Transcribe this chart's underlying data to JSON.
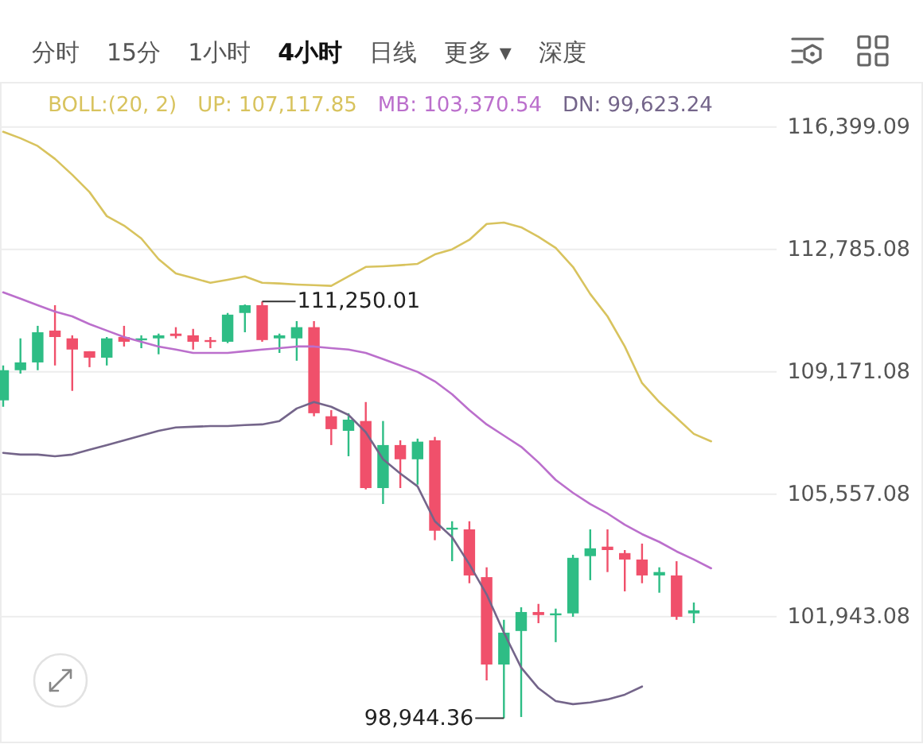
{
  "chart_data": {
    "type": "candlestick",
    "legend_title": "BOLL:(20, 2)",
    "legend": "top",
    "grid": "y",
    "tick_labels": "y",
    "annotations": [
      "分时",
      "15分",
      "1小时",
      "**4小时**",
      "日线",
      "更多 ▾",
      "深度"
    ],
    "categories": [
      null,
      null,
      null,
      null,
      null,
      null,
      null,
      null,
      null,
      null,
      null,
      null,
      null,
      null,
      null,
      null,
      null,
      null,
      null,
      null,
      null,
      null,
      null,
      null,
      null,
      null,
      null,
      null,
      null,
      null,
      null,
      null,
      null,
      null,
      null,
      null,
      null,
      null,
      null,
      null,
      null,
      null
    ],
    "ylim": [
      98230,
      117710
    ],
    "yticks": [
      {
        "value": 116399.09,
        "label": "116,399.09"
      },
      {
        "value": 112785.08,
        "label": "112,785.08"
      },
      {
        "value": 109171.08,
        "label": "109,171.08"
      },
      {
        "value": 105557.08,
        "label": "105,557.08"
      },
      {
        "value": 101943.08,
        "label": "101,943.08"
      }
    ],
    "series": [
      {
        "type": "line",
        "name": "UP: 107,117.85",
        "color": "#d8c35e",
        "values": [
          116260,
          116070,
          115840,
          115460,
          114990,
          114480,
          113770,
          113490,
          113110,
          112500,
          112080,
          111940,
          111800,
          111890,
          111990,
          111800,
          111780,
          111750,
          111730,
          111710,
          111990,
          112270,
          112290,
          112320,
          112360,
          112640,
          112790,
          113070,
          113540,
          113580,
          113440,
          113160,
          112830,
          112270,
          111470,
          110810,
          109920,
          108840,
          108280,
          107810,
          107340,
          107120
        ]
      },
      {
        "type": "line",
        "name": "MB: 103,370.54",
        "color": "#bb6fcc",
        "values": [
          111520,
          111330,
          111140,
          110950,
          110810,
          110580,
          110390,
          110200,
          110060,
          109920,
          109830,
          109730,
          109730,
          109730,
          109780,
          109830,
          109870,
          109920,
          109920,
          109870,
          109830,
          109730,
          109550,
          109360,
          109170,
          108890,
          108510,
          108040,
          107620,
          107290,
          106960,
          106500,
          105980,
          105600,
          105270,
          104990,
          104660,
          104380,
          104150,
          103870,
          103630,
          103370
        ]
      },
      {
        "type": "line",
        "name": "DN: 99,623.24",
        "color": "#74658a",
        "values": [
          106780,
          106730,
          106730,
          106680,
          106730,
          106870,
          107010,
          107150,
          107290,
          107430,
          107530,
          107550,
          107570,
          107570,
          107600,
          107620,
          107720,
          108090,
          108280,
          108140,
          107900,
          107390,
          106590,
          106170,
          105790,
          104760,
          104290,
          103490,
          102600,
          101470,
          100440,
          99830,
          99450,
          99360,
          99410,
          99500,
          99640,
          99880,
          null,
          null,
          null,
          null
        ]
      },
      {
        "ohlc": [
          [
            108330,
            109360,
            108140,
            109220
          ],
          [
            109220,
            110160,
            109120,
            109450
          ],
          [
            109450,
            110530,
            109220,
            110340
          ],
          [
            110390,
            111140,
            109360,
            110200
          ],
          [
            110160,
            110250,
            108610,
            109830
          ],
          [
            109780,
            109780,
            109310,
            109590
          ],
          [
            109590,
            110200,
            109360,
            110160
          ],
          [
            110200,
            110530,
            109920,
            110060
          ],
          [
            110130,
            110250,
            109870,
            110160
          ],
          [
            110160,
            110300,
            109690,
            110250
          ],
          [
            110300,
            110490,
            110160,
            110230
          ],
          [
            110250,
            110440,
            109830,
            110060
          ],
          [
            110110,
            110200,
            109870,
            110060
          ],
          [
            110060,
            110910,
            110020,
            110860
          ],
          [
            110910,
            111160,
            110340,
            111140
          ],
          [
            111140,
            111250.01,
            110060,
            110110
          ],
          [
            110160,
            110300,
            109730,
            110250
          ],
          [
            110160,
            110670,
            109500,
            110490
          ],
          [
            110490,
            110670,
            107860,
            107950
          ],
          [
            107860,
            108040,
            107010,
            107480
          ],
          [
            107430,
            107950,
            106680,
            107760
          ],
          [
            107720,
            108280,
            105700,
            105740
          ],
          [
            105740,
            107720,
            105270,
            107010
          ],
          [
            107010,
            107150,
            105740,
            106590
          ],
          [
            106590,
            107200,
            105840,
            107110
          ],
          [
            107150,
            107250,
            104200,
            104480
          ],
          [
            104520,
            104760,
            103580,
            104570
          ],
          [
            104520,
            104760,
            102930,
            103160
          ],
          [
            103110,
            103400,
            100060,
            100530
          ],
          [
            100530,
            101850,
            98944.36,
            101470
          ],
          [
            101520,
            102220,
            98980,
            102080
          ],
          [
            102080,
            102320,
            101750,
            101990
          ],
          [
            101990,
            102180,
            101190,
            102040
          ],
          [
            102040,
            103770,
            101940,
            103680
          ],
          [
            103730,
            104520,
            103020,
            103960
          ],
          [
            104010,
            104520,
            103260,
            103910
          ],
          [
            103820,
            103910,
            102690,
            103630
          ],
          [
            103630,
            104100,
            102930,
            103160
          ],
          [
            103160,
            103400,
            102650,
            103260
          ],
          [
            103160,
            103580,
            101850,
            101940
          ],
          [
            102040,
            102360,
            101750,
            102130
          ],
          null
        ],
        "value_labels": [
          null,
          null,
          null,
          null,
          null,
          null,
          null,
          null,
          null,
          null,
          null,
          null,
          null,
          null,
          null,
          "111,250.01",
          null,
          null,
          null,
          null,
          null,
          null,
          null,
          null,
          null,
          null,
          null,
          null,
          null,
          "98,944.36",
          null,
          null,
          null,
          null,
          null,
          null,
          null,
          null,
          null,
          null,
          null,
          null
        ],
        "colors": [
          "#2ebd85",
          "#2ebd85",
          "#2ebd85",
          "#f0506b",
          "#f0506b",
          "#f0506b",
          "#2ebd85",
          "#f0506b",
          "#2ebd85",
          "#2ebd85",
          "#f0506b",
          "#f0506b",
          "#f0506b",
          "#2ebd85",
          "#2ebd85",
          "#f0506b",
          "#2ebd85",
          "#2ebd85",
          "#f0506b",
          "#f0506b",
          "#2ebd85",
          "#f0506b",
          "#2ebd85",
          "#f0506b",
          "#2ebd85",
          "#f0506b",
          "#2ebd85",
          "#f0506b",
          "#f0506b",
          "#2ebd85",
          "#2ebd85",
          "#f0506b",
          "#2ebd85",
          "#2ebd85",
          "#2ebd85",
          "#f0506b",
          "#f0506b",
          "#f0506b",
          "#2ebd85",
          "#f0506b",
          "#2ebd85",
          null
        ]
      }
    ]
  }
}
